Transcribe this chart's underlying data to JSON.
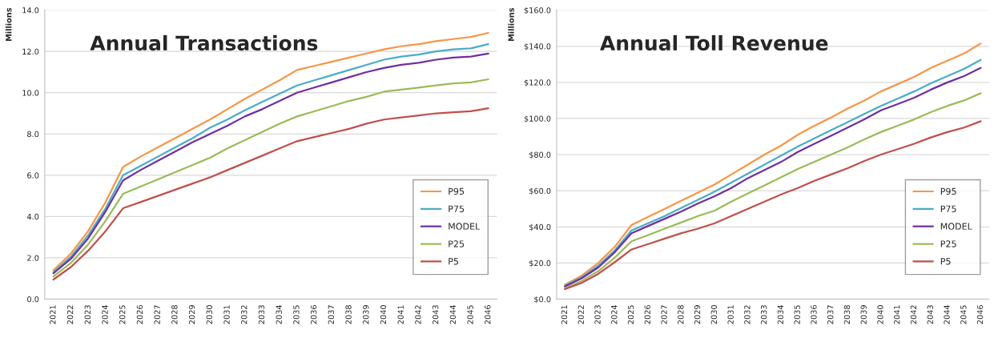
{
  "chart_data": [
    {
      "type": "line",
      "title": "Annual Transactions",
      "ylabel": "Millions",
      "categories": [
        "2021",
        "2022",
        "2023",
        "2024",
        "2025",
        "2026",
        "2027",
        "2028",
        "2029",
        "2030",
        "2031",
        "2032",
        "2033",
        "2034",
        "2035",
        "2036",
        "2037",
        "2038",
        "2039",
        "2040",
        "2041",
        "2042",
        "2043",
        "2044",
        "2045",
        "2046"
      ],
      "series": [
        {
          "name": "P95",
          "color": "#f79646",
          "values": [
            1.4,
            2.2,
            3.3,
            4.7,
            6.4,
            6.9,
            7.35,
            7.8,
            8.25,
            8.7,
            9.2,
            9.7,
            10.15,
            10.6,
            11.1,
            11.3,
            11.5,
            11.7,
            11.9,
            12.1,
            12.25,
            12.35,
            12.5,
            12.6,
            12.7,
            12.9
          ]
        },
        {
          "name": "P75",
          "color": "#4bacc6",
          "values": [
            1.3,
            2.05,
            3.1,
            4.4,
            6.0,
            6.45,
            6.9,
            7.35,
            7.8,
            8.3,
            8.7,
            9.15,
            9.55,
            9.95,
            10.35,
            10.6,
            10.85,
            11.1,
            11.35,
            11.6,
            11.75,
            11.85,
            12.0,
            12.1,
            12.15,
            12.35
          ]
        },
        {
          "name": "MODEL",
          "color": "#7030a0",
          "values": [
            1.25,
            1.95,
            2.95,
            4.25,
            5.75,
            6.25,
            6.7,
            7.15,
            7.6,
            8.0,
            8.4,
            8.85,
            9.2,
            9.6,
            10.0,
            10.25,
            10.5,
            10.75,
            11.0,
            11.2,
            11.35,
            11.45,
            11.6,
            11.7,
            11.75,
            11.9
          ]
        },
        {
          "name": "P25",
          "color": "#9bbb59",
          "values": [
            1.1,
            1.75,
            2.65,
            3.8,
            5.1,
            5.45,
            5.8,
            6.15,
            6.5,
            6.85,
            7.3,
            7.7,
            8.1,
            8.5,
            8.85,
            9.1,
            9.35,
            9.6,
            9.8,
            10.05,
            10.15,
            10.25,
            10.35,
            10.45,
            10.5,
            10.65
          ]
        },
        {
          "name": "P5",
          "color": "#c0504d",
          "values": [
            0.95,
            1.55,
            2.35,
            3.3,
            4.4,
            4.7,
            5.0,
            5.3,
            5.6,
            5.9,
            6.25,
            6.6,
            6.95,
            7.3,
            7.65,
            7.85,
            8.05,
            8.25,
            8.5,
            8.7,
            8.8,
            8.9,
            9.0,
            9.05,
            9.1,
            9.25
          ]
        }
      ],
      "ylim": [
        0,
        14
      ],
      "yticks": [
        {
          "value": 0,
          "label": "0.0"
        },
        {
          "value": 2,
          "label": "2.0"
        },
        {
          "value": 4,
          "label": "4.0"
        },
        {
          "value": 6,
          "label": "6.0"
        },
        {
          "value": 8,
          "label": "8.0"
        },
        {
          "value": 10,
          "label": "10.0"
        },
        {
          "value": 12,
          "label": "12.0"
        },
        {
          "value": 14,
          "label": "14.0"
        }
      ],
      "grid": "y",
      "legend": "bottom right",
      "line_style": "solid",
      "marker": "none"
    },
    {
      "type": "line",
      "title": "Annual Toll Revenue",
      "ylabel": "Millions",
      "categories": [
        "2021",
        "2022",
        "2023",
        "2024",
        "2025",
        "2026",
        "2027",
        "2028",
        "2029",
        "2030",
        "2031",
        "2032",
        "2033",
        "2034",
        "2035",
        "2036",
        "2037",
        "2038",
        "2039",
        "2040",
        "2041",
        "2042",
        "2043",
        "2044",
        "2045",
        "2046"
      ],
      "series": [
        {
          "name": "P95",
          "color": "#f79646",
          "values": [
            8,
            13,
            20,
            29,
            41,
            45.5,
            50,
            54.5,
            59,
            63.5,
            69,
            74.5,
            80,
            85,
            91,
            96,
            100.5,
            105.5,
            110,
            115,
            119,
            123,
            128,
            132,
            136,
            141.5
          ]
        },
        {
          "name": "P75",
          "color": "#4bacc6",
          "values": [
            7.5,
            12,
            18.5,
            27,
            38,
            42,
            46,
            50.5,
            55,
            59.5,
            64.5,
            69.5,
            74.5,
            79.5,
            84.5,
            89,
            93.5,
            98,
            102.5,
            107,
            111,
            115,
            119.5,
            123.5,
            127.5,
            132.5
          ]
        },
        {
          "name": "MODEL",
          "color": "#7030a0",
          "values": [
            7,
            11.5,
            17.5,
            26,
            36.5,
            40.5,
            44.5,
            48.5,
            53,
            57,
            61.5,
            67,
            71.5,
            76,
            81.5,
            86,
            90.5,
            95,
            99.5,
            104.5,
            108,
            111.5,
            116,
            120,
            123.5,
            128
          ]
        },
        {
          "name": "P25",
          "color": "#9bbb59",
          "values": [
            6,
            10,
            15.5,
            23,
            32,
            35.5,
            39,
            42.5,
            46,
            49,
            54,
            58.5,
            63,
            67.5,
            72,
            76,
            80,
            84,
            88.5,
            92.5,
            96,
            99.5,
            103.5,
            107,
            110,
            114
          ]
        },
        {
          "name": "P5",
          "color": "#c0504d",
          "values": [
            5.5,
            9,
            14,
            20.5,
            27.5,
            30.5,
            33.5,
            36.5,
            39,
            42,
            46,
            50,
            54,
            58,
            61.5,
            65.5,
            69,
            72.5,
            76.5,
            80,
            83,
            86,
            89.5,
            92.5,
            95,
            98.5
          ]
        }
      ],
      "ylim": [
        0,
        160
      ],
      "yticks": [
        {
          "value": 0,
          "label": "$0.0"
        },
        {
          "value": 20,
          "label": "$20.0"
        },
        {
          "value": 40,
          "label": "$40.0"
        },
        {
          "value": 60,
          "label": "$60.0"
        },
        {
          "value": 80,
          "label": "$80.0"
        },
        {
          "value": 100,
          "label": "$100.0"
        },
        {
          "value": 120,
          "label": "$120.0"
        },
        {
          "value": 140,
          "label": "$140.0"
        },
        {
          "value": 160,
          "label": "$160.0"
        }
      ],
      "grid": "y",
      "legend": "bottom right",
      "line_style": "solid",
      "marker": "none"
    }
  ]
}
